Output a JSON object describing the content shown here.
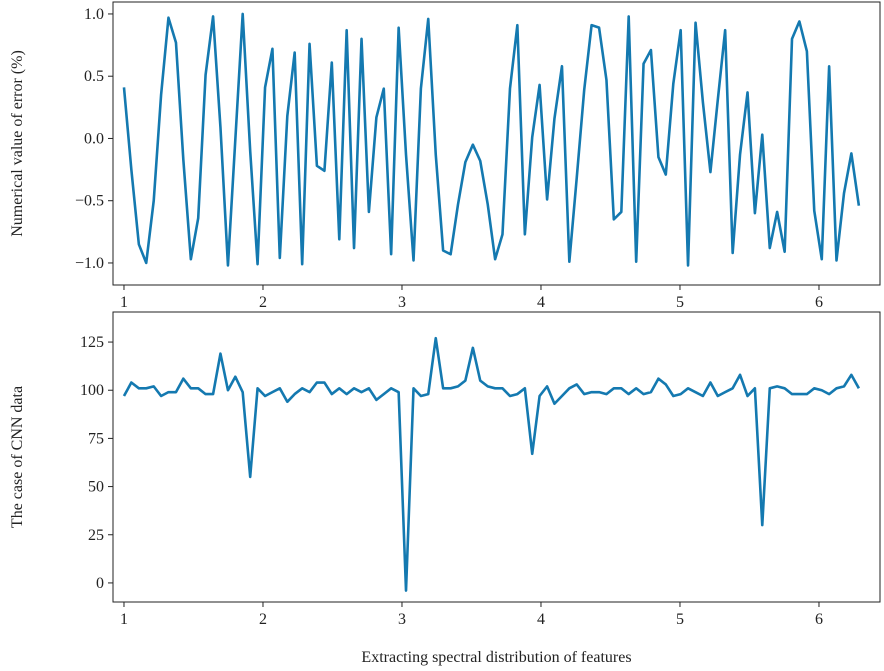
{
  "chart_data": [
    {
      "type": "line",
      "ylabel": "Numerical value of error (%)",
      "x": [
        1.0,
        1.053,
        1.107,
        1.16,
        1.214,
        1.267,
        1.32,
        1.374,
        1.427,
        1.481,
        1.534,
        1.587,
        1.641,
        1.694,
        1.748,
        1.801,
        1.854,
        1.908,
        1.961,
        2.015,
        2.068,
        2.121,
        2.175,
        2.228,
        2.282,
        2.335,
        2.388,
        2.442,
        2.495,
        2.549,
        2.602,
        2.655,
        2.709,
        2.762,
        2.816,
        2.869,
        2.922,
        2.976,
        3.029,
        3.083,
        3.136,
        3.189,
        3.243,
        3.296,
        3.35,
        3.403,
        3.456,
        3.51,
        3.563,
        3.617,
        3.67,
        3.723,
        3.777,
        3.83,
        3.884,
        3.937,
        3.99,
        4.044,
        4.097,
        4.151,
        4.204,
        4.257,
        4.311,
        4.364,
        4.418,
        4.471,
        4.524,
        4.578,
        4.631,
        4.685,
        4.738,
        4.791,
        4.845,
        4.898,
        4.952,
        5.005,
        5.058,
        5.112,
        5.165,
        5.219,
        5.272,
        5.325,
        5.379,
        5.432,
        5.486,
        5.539,
        5.592,
        5.646,
        5.699,
        5.753,
        5.806,
        5.859,
        5.913,
        5.966,
        6.02,
        6.073,
        6.126,
        6.18,
        6.233,
        6.287
      ],
      "series": [
        {
          "color": "#1479b0",
          "values": [
            0.41,
            -0.25,
            -0.85,
            -1.0,
            -0.5,
            0.35,
            0.97,
            0.77,
            -0.17,
            -0.97,
            -0.64,
            0.51,
            0.98,
            0.09,
            -1.02,
            -0.01,
            1.0,
            -0.1,
            -1.01,
            0.41,
            0.72,
            -0.96,
            0.18,
            0.69,
            -1.01,
            0.76,
            -0.22,
            -0.26,
            0.61,
            -0.81,
            0.87,
            -0.88,
            0.8,
            -0.59,
            0.17,
            0.4,
            -0.93,
            0.89,
            -0.13,
            -0.98,
            0.4,
            0.96,
            -0.13,
            -0.9,
            -0.93,
            -0.53,
            -0.19,
            -0.05,
            -0.18,
            -0.53,
            -0.97,
            -0.77,
            0.4,
            0.91,
            -0.77,
            0.01,
            0.43,
            -0.49,
            0.16,
            0.58,
            -0.99,
            -0.32,
            0.39,
            0.91,
            0.89,
            0.47,
            -0.65,
            -0.59,
            0.98,
            -0.99,
            0.6,
            0.71,
            -0.15,
            -0.29,
            0.44,
            0.87,
            -1.02,
            0.93,
            0.29,
            -0.27,
            0.31,
            0.87,
            -0.92,
            -0.13,
            0.37,
            -0.6,
            0.03,
            -0.88,
            -0.59,
            -0.91,
            0.8,
            0.94,
            0.7,
            -0.58,
            -0.97,
            0.58,
            -0.98,
            -0.44,
            -0.12,
            -0.54
          ]
        }
      ],
      "xlim": [
        0.921,
        6.439
      ],
      "xticks": [
        1,
        2,
        3,
        4,
        5,
        6
      ],
      "ylim": [
        -1.177,
        1.096
      ],
      "yticks": [
        {
          "value": -1,
          "label": "−1.0"
        },
        {
          "value": -0.5,
          "label": "−0.5"
        },
        {
          "value": 0,
          "label": "0.0"
        },
        0.5,
        {
          "value": 1,
          "label": "1.0"
        }
      ]
    },
    {
      "type": "line",
      "ylabel": "The case of CNN data",
      "xlabel": "Extracting spectral distribution of features",
      "x": [
        1.0,
        1.053,
        1.107,
        1.16,
        1.214,
        1.267,
        1.32,
        1.374,
        1.427,
        1.481,
        1.534,
        1.587,
        1.641,
        1.694,
        1.748,
        1.801,
        1.854,
        1.908,
        1.961,
        2.015,
        2.068,
        2.121,
        2.175,
        2.228,
        2.282,
        2.335,
        2.388,
        2.442,
        2.495,
        2.549,
        2.602,
        2.655,
        2.709,
        2.762,
        2.816,
        2.869,
        2.922,
        2.976,
        3.029,
        3.083,
        3.136,
        3.189,
        3.243,
        3.296,
        3.35,
        3.403,
        3.456,
        3.51,
        3.563,
        3.617,
        3.67,
        3.723,
        3.777,
        3.83,
        3.884,
        3.937,
        3.99,
        4.044,
        4.097,
        4.151,
        4.204,
        4.257,
        4.311,
        4.364,
        4.418,
        4.471,
        4.524,
        4.578,
        4.631,
        4.685,
        4.738,
        4.791,
        4.845,
        4.898,
        4.952,
        5.005,
        5.058,
        5.112,
        5.165,
        5.219,
        5.272,
        5.325,
        5.379,
        5.432,
        5.486,
        5.539,
        5.592,
        5.646,
        5.699,
        5.753,
        5.806,
        5.859,
        5.913,
        5.966,
        6.02,
        6.073,
        6.126,
        6.18,
        6.233,
        6.287
      ],
      "series": [
        {
          "color": "#1479b0",
          "values": [
            97,
            104,
            101,
            101,
            102,
            97,
            99,
            99,
            106,
            101,
            101,
            98,
            98,
            119,
            100,
            107,
            99,
            55,
            101,
            97,
            99,
            101,
            94,
            98,
            101,
            99,
            104,
            104,
            98,
            101,
            98,
            101,
            99,
            101,
            95,
            98,
            101,
            99,
            -4,
            101,
            97,
            98,
            127,
            101,
            101,
            102,
            105,
            122,
            105,
            102,
            101,
            101,
            97,
            98,
            101,
            67,
            97,
            102,
            93,
            97,
            101,
            103,
            98,
            99,
            99,
            98,
            101,
            101,
            98,
            101,
            98,
            99,
            106,
            103,
            97,
            98,
            101,
            99,
            97,
            104,
            97,
            99,
            101,
            108,
            97,
            101,
            30,
            101,
            102,
            101,
            98,
            98,
            98,
            101,
            100,
            98,
            101,
            102,
            108,
            101
          ]
        }
      ],
      "xlim": [
        0.921,
        6.439
      ],
      "xticks": [
        1,
        2,
        3,
        4,
        5,
        6
      ],
      "ylim": [
        -9.9,
        140.6
      ],
      "yticks": [
        0,
        25,
        50,
        75,
        100,
        125
      ]
    }
  ]
}
